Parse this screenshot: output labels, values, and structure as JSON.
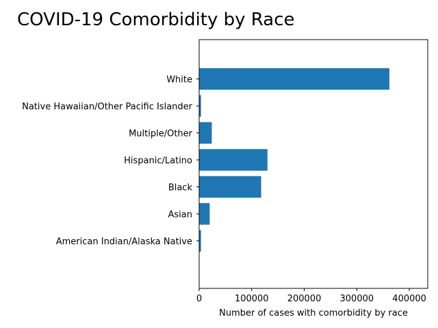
{
  "chart_data": {
    "type": "bar",
    "orientation": "horizontal",
    "title": "COVID-19 Comorbidity by Race",
    "xlabel": "Number of cases with comorbidity by race",
    "ylabel": "",
    "categories": [
      "American Indian/Alaska Native",
      "Asian",
      "Black",
      "Hispanic/Latino",
      "Multiple/Other",
      "Native Hawaiian/Other Pacific Islander",
      "White"
    ],
    "values": [
      3500,
      20000,
      118000,
      130000,
      24000,
      3500,
      362000
    ],
    "xlim": [
      0,
      435000
    ],
    "xticks": [
      0,
      100000,
      200000,
      300000,
      400000
    ],
    "xtick_labels": [
      "0",
      "100000",
      "200000",
      "300000",
      "400000"
    ],
    "bar_color": "#1f77b4",
    "grid": false,
    "legend": "none"
  }
}
